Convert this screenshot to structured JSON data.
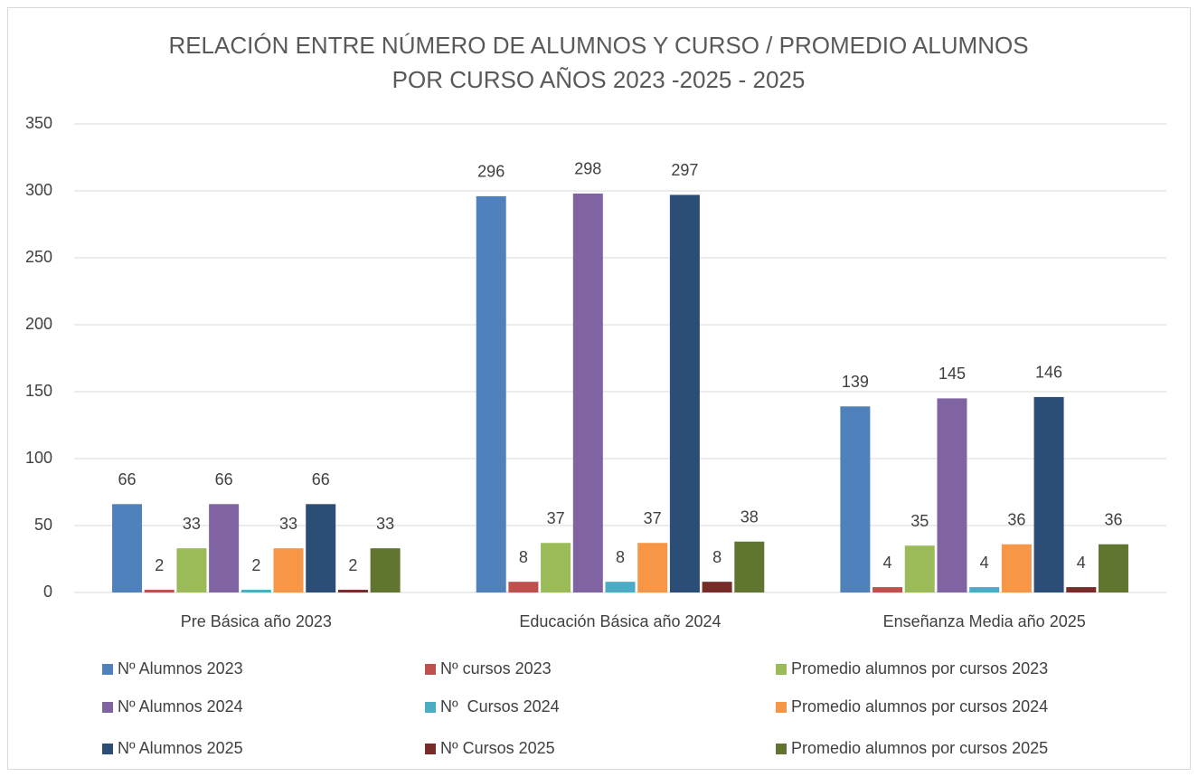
{
  "chart_data": {
    "type": "bar",
    "title": [
      "RELACIÓN ENTRE NÚMERO DE ALUMNOS Y CURSO / PROMEDIO ALUMNOS",
      "POR CURSO AÑOS 2023 -2025 - 2025"
    ],
    "categories": [
      "Pre Básica año 2023",
      "Educación Básica año 2024",
      "Enseñanza Media año 2025"
    ],
    "series": [
      {
        "name": "Nº Alumnos 2023",
        "color": "#4f81bd",
        "values": [
          66,
          296,
          139
        ]
      },
      {
        "name": "Nº cursos 2023",
        "color": "#c0504d",
        "values": [
          2,
          8,
          4
        ]
      },
      {
        "name": "Promedio alumnos por cursos 2023",
        "color": "#9bbb59",
        "values": [
          33,
          37,
          35
        ]
      },
      {
        "name": "Nº Alumnos 2024",
        "color": "#8064a2",
        "values": [
          66,
          298,
          145
        ]
      },
      {
        "name": "Nº  Cursos 2024",
        "color": "#4bacc6",
        "values": [
          2,
          8,
          4
        ]
      },
      {
        "name": "Promedio alumnos por cursos 2024",
        "color": "#f79646",
        "values": [
          33,
          37,
          36
        ]
      },
      {
        "name": "Nº Alumnos 2025",
        "color": "#2c4d75",
        "values": [
          66,
          297,
          146
        ]
      },
      {
        "name": "Nº Cursos 2025",
        "color": "#772c2a",
        "values": [
          2,
          8,
          4
        ]
      },
      {
        "name": "Promedio alumnos por cursos 2025",
        "color": "#5f7530",
        "values": [
          33,
          38,
          36
        ]
      }
    ],
    "ylim": [
      0,
      350
    ],
    "yticks": [
      0,
      50,
      100,
      150,
      200,
      250,
      300,
      350
    ],
    "grid": true,
    "legend": "bottom"
  }
}
